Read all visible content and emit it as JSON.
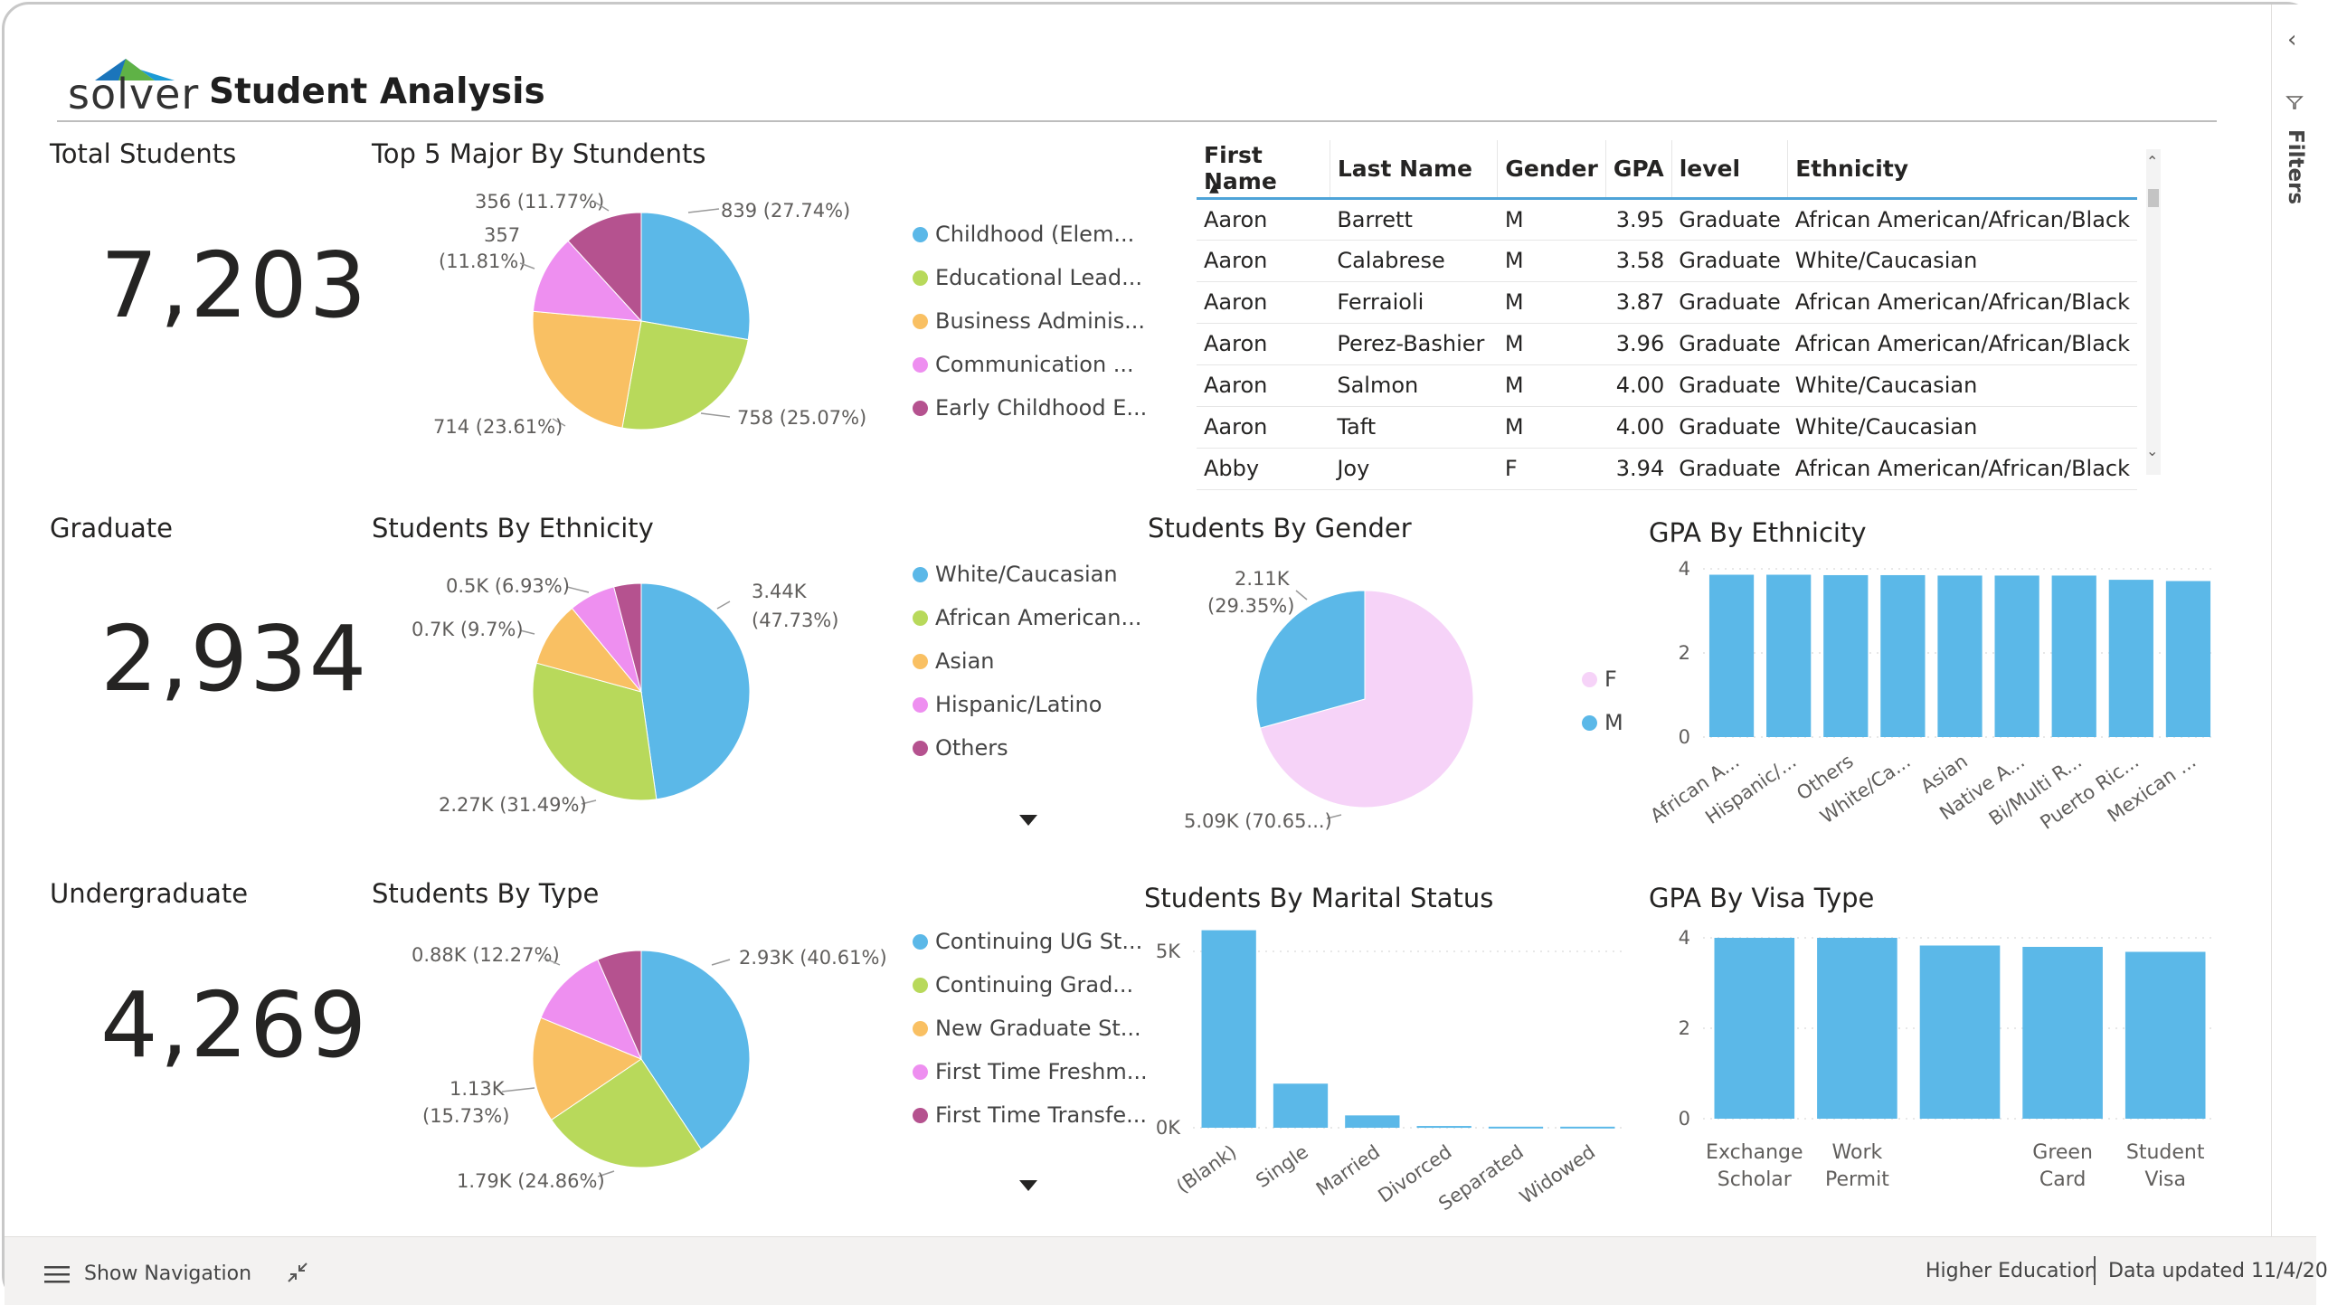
{
  "header": {
    "logo": "solver",
    "title": "Student Analysis"
  },
  "kpis": [
    {
      "title": "Total Students",
      "value": "7,203"
    },
    {
      "title": "Graduate",
      "value": "2,934"
    },
    {
      "title": "Undergraduate",
      "value": "4,269"
    }
  ],
  "colors": {
    "blue": "#5bb8e8",
    "green": "#b8d95b",
    "orange": "#f9c063",
    "pink": "#ee8ff0",
    "purple": "#b5528f",
    "lightpink": "#f6d3f8"
  },
  "major_chart": {
    "title": "Top 5 Major By Stundents",
    "legend": [
      "Childhood (Elem...",
      "Educational Lead...",
      "Business Adminis...",
      "Communication ...",
      "Early Childhood E..."
    ],
    "labels": {
      "a": "839 (27.74%)",
      "b": "758 (25.07%)",
      "c": "714 (23.61%)",
      "d1": "357",
      "d2": "(11.81%)",
      "e": "356 (11.77%)"
    }
  },
  "ethnicity_chart": {
    "title": "Students By Ethnicity",
    "legend": [
      "White/Caucasian",
      "African American...",
      "Asian",
      "Hispanic/Latino",
      "Others"
    ],
    "labels": {
      "a1": "3.44K",
      "a2": "(47.73%)",
      "b": "2.27K (31.49%)",
      "c": "0.7K (9.7%)",
      "d": "0.5K (6.93%)"
    }
  },
  "type_chart": {
    "title": "Students By Type",
    "legend": [
      "Continuing UG St...",
      "Continuing Grad...",
      "New Graduate St...",
      "First Time Freshm...",
      "First Time Transfe..."
    ],
    "labels": {
      "a": "2.93K (40.61%)",
      "b": "1.79K (24.86%)",
      "c1": "1.13K",
      "c2": "(15.73%)",
      "d": "0.88K (12.27%)"
    }
  },
  "gender_chart": {
    "title": "Students By Gender",
    "legend": [
      "F",
      "M"
    ],
    "labels": {
      "m1": "2.11K",
      "m2": "(29.35%)",
      "f": "5.09K (70.65...)"
    }
  },
  "table": {
    "columns": [
      "First Name",
      "Last Name",
      "Gender",
      "GPA",
      "level",
      "Ethnicity"
    ],
    "rows": [
      [
        "Aaron",
        "Barrett",
        "M",
        "3.95",
        "Graduate",
        "African American/African/Black"
      ],
      [
        "Aaron",
        "Calabrese",
        "M",
        "3.58",
        "Graduate",
        "White/Caucasian"
      ],
      [
        "Aaron",
        "Ferraioli",
        "M",
        "3.87",
        "Graduate",
        "African American/African/Black"
      ],
      [
        "Aaron",
        "Perez-Bashier",
        "M",
        "3.96",
        "Graduate",
        "African American/African/Black"
      ],
      [
        "Aaron",
        "Salmon",
        "M",
        "4.00",
        "Graduate",
        "White/Caucasian"
      ],
      [
        "Aaron",
        "Taft",
        "M",
        "4.00",
        "Graduate",
        "White/Caucasian"
      ],
      [
        "Abby",
        "Joy",
        "F",
        "3.94",
        "Graduate",
        "African American/African/Black"
      ]
    ]
  },
  "chart_data": [
    {
      "type": "pie",
      "title": "Top 5 Major By Stundents",
      "categories": [
        "Childhood (Elem...",
        "Educational Lead...",
        "Business Adminis...",
        "Communication ...",
        "Early Childhood E..."
      ],
      "values": [
        839,
        758,
        714,
        357,
        356
      ]
    },
    {
      "type": "pie",
      "title": "Students By Ethnicity",
      "categories": [
        "White/Caucasian",
        "African American...",
        "Asian",
        "Hispanic/Latino",
        "Others"
      ],
      "values": [
        3440,
        2270,
        700,
        500,
        293
      ]
    },
    {
      "type": "pie",
      "title": "Students By Gender",
      "categories": [
        "F",
        "M"
      ],
      "values": [
        5090,
        2110
      ]
    },
    {
      "type": "pie",
      "title": "Students By Type",
      "categories": [
        "Continuing UG St...",
        "Continuing Grad...",
        "New Graduate St...",
        "First Time Freshm...",
        "First Time Transfe..."
      ],
      "values": [
        2930,
        1790,
        1130,
        880,
        473
      ]
    },
    {
      "type": "bar",
      "title": "GPA By Ethnicity",
      "categories": [
        "African A...",
        "Hispanic/...",
        "Others",
        "White/Ca...",
        "Asian",
        "Native A...",
        "Bi/Multi R...",
        "Puerto Ric...",
        "Mexican ..."
      ],
      "values": [
        3.86,
        3.86,
        3.85,
        3.85,
        3.84,
        3.84,
        3.84,
        3.74,
        3.71
      ],
      "ylim": [
        0,
        4
      ],
      "yticks": [
        "0",
        "2",
        "4"
      ]
    },
    {
      "type": "bar",
      "title": "Students By Marital Status",
      "categories": [
        "(Blank)",
        "Single",
        "Married",
        "Divorced",
        "Separated",
        "Widowed"
      ],
      "values": [
        5600,
        1250,
        350,
        50,
        30,
        30
      ],
      "ylim": [
        0,
        6000
      ],
      "yticks": [
        "0K",
        "5K"
      ]
    },
    {
      "type": "bar",
      "title": "GPA By Visa Type",
      "categories": [
        [
          "Exchange",
          "Scholar"
        ],
        [
          "Work",
          "Permit"
        ],
        [
          "",
          ""
        ],
        [
          "Green",
          "Card"
        ],
        [
          "Student",
          "Visa"
        ]
      ],
      "values": [
        4.0,
        4.0,
        3.83,
        3.8,
        3.69
      ],
      "ylim": [
        0,
        4
      ],
      "yticks": [
        "0",
        "2",
        "4"
      ]
    }
  ],
  "footer": {
    "show_navigation": "Show Navigation",
    "workspace": "Higher Education",
    "updated": "Data updated 11/4/20"
  },
  "side": {
    "filters": "Filters"
  }
}
